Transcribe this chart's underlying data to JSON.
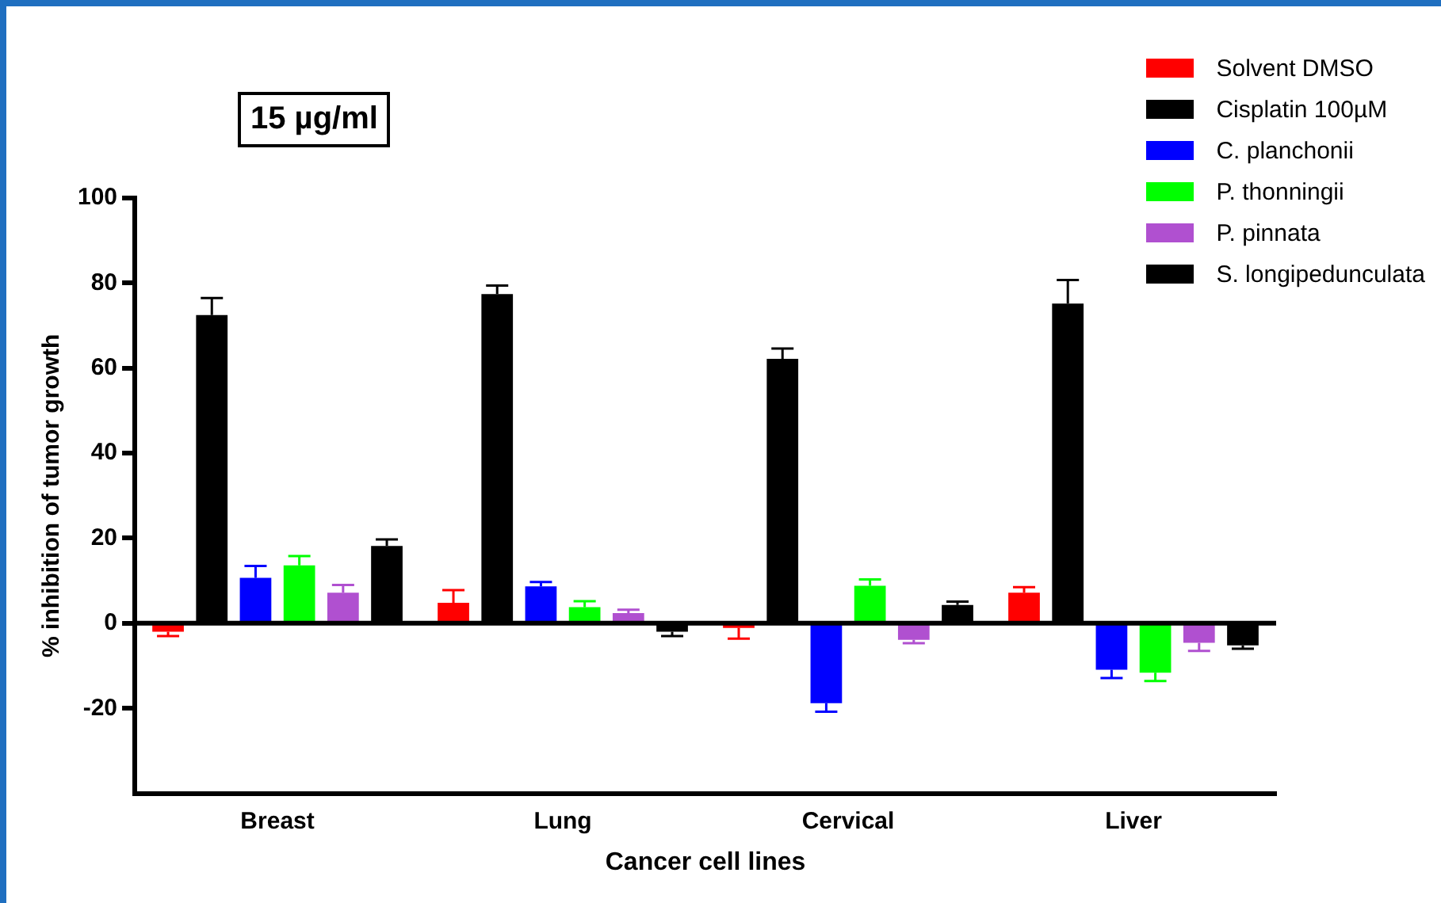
{
  "chart_data": {
    "type": "bar",
    "title": "15 µg/ml",
    "xlabel": "Cancer cell lines",
    "ylabel": "% inhibition of tumor growth",
    "categories": [
      "Breast",
      "Lung",
      "Cervical",
      "Liver"
    ],
    "series": [
      {
        "name": "Solvent DMSO",
        "color": "#ff0000",
        "values": [
          -2,
          4.8,
          -1.1,
          7.2
        ],
        "errors": [
          1,
          3,
          2.5,
          1.3
        ]
      },
      {
        "name": "Cisplatin 100µM",
        "color": "#000000",
        "values": [
          72.5,
          77.4,
          62.2,
          75.2
        ],
        "errors": [
          4,
          2,
          2.4,
          5.5
        ]
      },
      {
        "name": "C. planchonii",
        "color": "#0000ff",
        "values": [
          10.7,
          8.7,
          -18.8,
          -10.9
        ],
        "errors": [
          2.8,
          1,
          2,
          2
        ]
      },
      {
        "name": "P. thonningii",
        "color": "#00ff00",
        "values": [
          13.6,
          3.8,
          8.8,
          -11.6
        ],
        "errors": [
          2.2,
          1.4,
          1.5,
          2
        ]
      },
      {
        "name": "P. pinnata",
        "color": "#b050d0",
        "values": [
          7.2,
          2.4,
          -3.9,
          -4.6
        ],
        "errors": [
          1.8,
          0.8,
          0.8,
          1.9
        ]
      },
      {
        "name": "S. longipedunculata",
        "color": "#000000",
        "values": [
          18.2,
          -2,
          4.3,
          -5.2
        ],
        "errors": [
          1.5,
          1,
          0.8,
          0.8
        ]
      }
    ],
    "ylim": [
      -40,
      100
    ],
    "yticks": [
      -20,
      0,
      20,
      40,
      60,
      80,
      100
    ],
    "grid": false,
    "ref_lines": [
      {
        "axis": "y",
        "value": 0,
        "color": "#000000"
      }
    ],
    "legend": "top right"
  }
}
